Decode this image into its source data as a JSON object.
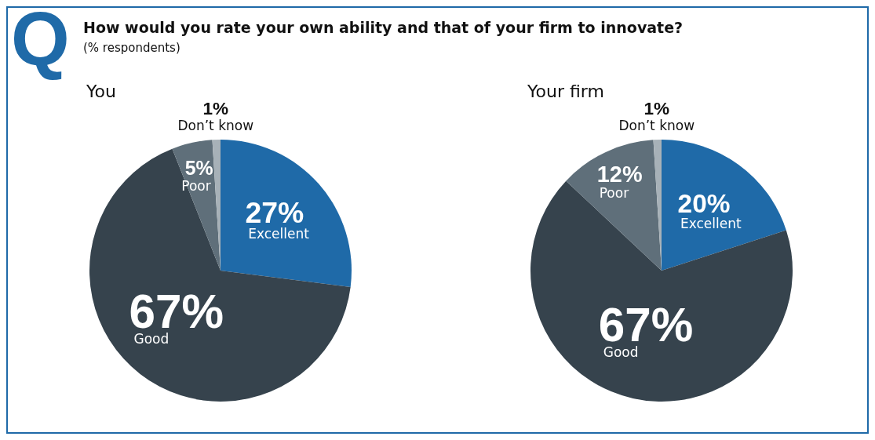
{
  "chart_data": [
    {
      "type": "other",
      "title": "How would you rate your own ability and that of your firm to innovate?",
      "subtitle": "(% respondents)",
      "annotations": [
        "Q"
      ]
    },
    {
      "type": "pie",
      "title": "You",
      "categories": [
        "Excellent",
        "Good",
        "Poor",
        "Don’t know"
      ],
      "values": [
        27,
        67,
        5,
        1
      ],
      "value_labels": [
        "27%",
        "67%",
        "5%",
        "1%"
      ],
      "colors": [
        "#1f6aa8",
        "#36434d",
        "#5f6f7a",
        "#a7b1b8"
      ],
      "legend": false
    },
    {
      "type": "pie",
      "title": "Your firm",
      "categories": [
        "Excellent",
        "Good",
        "Poor",
        "Don’t know"
      ],
      "values": [
        20,
        67,
        12,
        1
      ],
      "value_labels": [
        "20%",
        "67%",
        "12%",
        "1%"
      ],
      "colors": [
        "#1f6aa8",
        "#36434d",
        "#5f6f7a",
        "#a7b1b8"
      ],
      "legend": false
    }
  ]
}
